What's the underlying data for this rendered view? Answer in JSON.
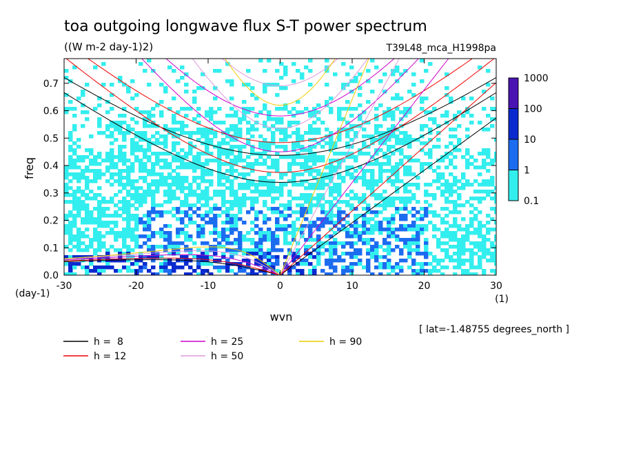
{
  "chart_data": {
    "type": "heatmap",
    "title": "toa outgoing longwave flux S-T power spectrum",
    "units": "((W m-2 day-1)2)",
    "experiment": "T39L48_mca_H1998pa",
    "xlabel": "wvn",
    "ylabel": "freq",
    "x_unit": "(1)",
    "y_unit": "(day-1)",
    "xlim": [
      -30,
      30
    ],
    "ylim": [
      0,
      0.79
    ],
    "x_ticks": [
      "-30",
      "-20",
      "-10",
      "0",
      "10",
      "20",
      "30"
    ],
    "x_tick_values": [
      -30,
      -20,
      -10,
      0,
      10,
      20,
      30
    ],
    "y_ticks": [
      "0.0",
      "0.1",
      "0.2",
      "0.3",
      "0.4",
      "0.5",
      "0.6",
      "0.7"
    ],
    "y_tick_values": [
      0,
      0.1,
      0.2,
      0.3,
      0.4,
      0.5,
      0.6,
      0.7
    ],
    "latitude_note": "[ lat=-1.48755 degrees_north ]",
    "colorbar": {
      "labels": [
        "1000",
        "100",
        "10",
        "1",
        "0.1"
      ],
      "levels": [
        0.1,
        1,
        10,
        100,
        1000
      ],
      "colors": [
        "#33eeee",
        "#1c6cf0",
        "#0a2ad0",
        "#4a14b4"
      ]
    },
    "dispersion_curves": [
      {
        "label": "h =  8",
        "h": 8,
        "color": "#000000"
      },
      {
        "label": "h = 12",
        "h": 12,
        "color": "#ee0000"
      },
      {
        "label": "h = 25",
        "h": 25,
        "color": "#cc00cc"
      },
      {
        "label": "h = 50",
        "h": 50,
        "color": "#dd99dd"
      },
      {
        "label": "h = 90",
        "h": 90,
        "color": "#eecc00"
      }
    ]
  }
}
